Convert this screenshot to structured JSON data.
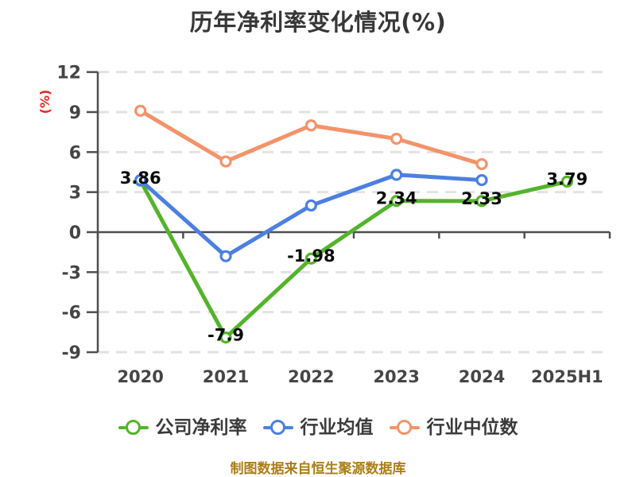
{
  "page": {
    "title": "历年净利率变化情况(%)",
    "footer_note": "制图数据来自恒生聚源数据库"
  },
  "colors": {
    "background": "#ffffff",
    "title_text": "#373737",
    "axis": "#4f4f52",
    "tick_label": "#454545",
    "grid": "#e2e2e2",
    "data_label": "#0a0a0a",
    "ylabel_red": "#e8261c",
    "footer_gold": "#ab7d15",
    "series_green": "#53b42a",
    "series_blue": "#4c7fe2",
    "series_orange": "#f4936a"
  },
  "chart_data": {
    "type": "line",
    "title": "历年净利率变化情况(%)",
    "xlabel": "",
    "ylabel": "(%)",
    "categories": [
      "2020",
      "2021",
      "2022",
      "2023",
      "2024",
      "2025H1"
    ],
    "yticks": [
      12,
      9,
      6,
      3,
      0,
      -3,
      -6,
      -9
    ],
    "ylim": [
      -9,
      12
    ],
    "grid": "horizontal-dashed",
    "legend_position": "bottom",
    "marker": "white-filled-circle",
    "series": [
      {
        "name": "公司净利率",
        "color": "#53b42a",
        "values": [
          3.86,
          -7.9,
          -1.98,
          2.34,
          2.33,
          3.79
        ],
        "point_labels": [
          "3.86",
          "-7.9",
          "-1.98",
          "2.34",
          "2.33",
          "3.79"
        ]
      },
      {
        "name": "行业均值",
        "color": "#4c7fe2",
        "values": [
          3.9,
          -1.8,
          2.0,
          4.3,
          3.9,
          null
        ],
        "point_labels": null
      },
      {
        "name": "行业中位数",
        "color": "#f4936a",
        "values": [
          9.1,
          5.3,
          8.0,
          7.0,
          5.1,
          null
        ],
        "point_labels": null
      }
    ],
    "draw_order": [
      2,
      0,
      1
    ]
  }
}
